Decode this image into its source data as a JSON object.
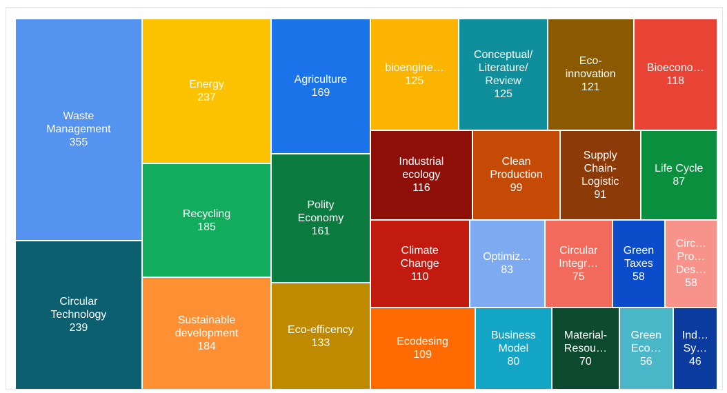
{
  "chart_data": {
    "type": "treemap",
    "categories": [
      "Waste\nManagement",
      "Circular\nTechnology",
      "Energy",
      "Recycling",
      "Sustainable\ndevelopment",
      "Agriculture",
      "Polity\nEconomy",
      "Eco-efficency",
      "bioengine…",
      "Conceptual/\nLiterature/\nReview",
      "Eco-\ninnovation",
      "Bioecono…",
      "Industrial\necology",
      "Clean\nProduction",
      "Supply\nChain-\nLogistic",
      "Life Cycle",
      "Climate\nChange",
      "Optimiz…",
      "Circular\nIntegr…",
      "Green\nTaxes",
      "Circ…\nPro…\nDes…",
      "Ecodesing",
      "Business\nModel",
      "Material-\nResou…",
      "Green\nEco…",
      "Ind…\nSy…"
    ],
    "values": [
      355,
      239,
      237,
      185,
      184,
      169,
      161,
      133,
      125,
      125,
      121,
      118,
      116,
      99,
      91,
      87,
      110,
      83,
      75,
      58,
      58,
      109,
      80,
      70,
      56,
      46
    ],
    "colors": [
      "#5593f0",
      "#0b5f6e",
      "#fcc200",
      "#12ad5c",
      "#ff8f33",
      "#1a73e8",
      "#0b7a3e",
      "#bf8a00",
      "#fbb400",
      "#0e8f9b",
      "#8b5a00",
      "#e94335",
      "#8e0f07",
      "#c44a06",
      "#8c3a08",
      "#0a8f3f",
      "#c31a0f",
      "#7eaaf2",
      "#f26a5b",
      "#0b4ccb",
      "#f7938a",
      "#ff6b00",
      "#12a5c6",
      "#0b4a2f",
      "#4ab7c9",
      "#0b3b9e"
    ]
  }
}
